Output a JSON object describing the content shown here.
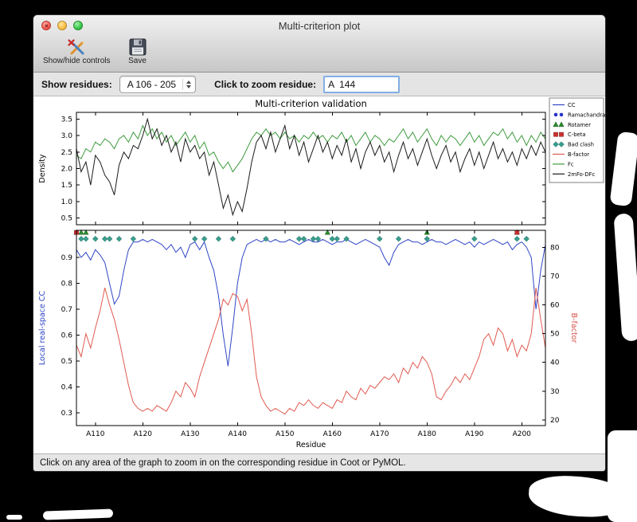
{
  "window": {
    "title": "Multi-criterion plot",
    "toolbar": {
      "show_hide_controls": "Show/hide controls",
      "save": "Save"
    },
    "controls": {
      "show_residues_label": "Show residues:",
      "residue_range_value": "A 106 - 205",
      "zoom_label": "Click to zoom residue:",
      "zoom_value": "A  144"
    },
    "status_text": "Click on any area of the graph to zoom in on the corresponding residue in Coot or PyMOL."
  },
  "chart_data": {
    "type": "line",
    "title": "Multi-criterion validation",
    "xlabel": "Residue",
    "x_start": 106,
    "x_end": 205,
    "x_ticks": [
      {
        "label": "A110",
        "value": 110
      },
      {
        "label": "A120",
        "value": 120
      },
      {
        "label": "A130",
        "value": 130
      },
      {
        "label": "A140",
        "value": 140
      },
      {
        "label": "A150",
        "value": 150
      },
      {
        "label": "A160",
        "value": 160
      },
      {
        "label": "A170",
        "value": 170
      },
      {
        "label": "A180",
        "value": 180
      },
      {
        "label": "A190",
        "value": 190
      },
      {
        "label": "A200",
        "value": 200
      }
    ],
    "top_panel": {
      "ylabel": "Density",
      "ylim": [
        0.3,
        3.7
      ],
      "yticks": [
        0.5,
        1.0,
        1.5,
        2.0,
        2.5,
        3.0,
        3.5
      ],
      "series": [
        {
          "name": "Fc",
          "color": "#3f9b3f",
          "values": [
            2.4,
            2.3,
            2.6,
            2.5,
            2.8,
            2.7,
            2.9,
            2.8,
            2.6,
            2.9,
            3.0,
            2.8,
            3.1,
            2.9,
            3.3,
            3.0,
            3.2,
            2.9,
            3.1,
            2.8,
            3.0,
            2.7,
            2.9,
            3.1,
            2.8,
            3.0,
            2.6,
            2.8,
            2.4,
            2.5,
            2.2,
            2.0,
            2.2,
            1.9,
            2.1,
            2.3,
            2.6,
            2.9,
            3.1,
            3.0,
            3.2,
            3.0,
            3.1,
            2.9,
            3.1,
            2.9,
            3.0,
            2.8,
            3.0,
            2.9,
            3.1,
            2.9,
            3.0,
            2.8,
            3.0,
            2.9,
            3.1,
            2.8,
            3.0,
            2.7,
            2.9,
            3.1,
            2.8,
            3.0,
            2.9,
            2.7,
            2.9,
            2.8,
            3.0,
            3.2,
            2.9,
            3.1,
            2.8,
            3.0,
            3.2,
            2.9,
            2.7,
            3.0,
            2.8,
            3.0,
            2.9,
            2.7,
            2.9,
            3.1,
            2.8,
            3.0,
            2.7,
            2.9,
            3.1,
            3.0,
            3.2,
            2.9,
            3.1,
            2.8,
            3.0,
            2.7,
            3.0,
            2.8,
            3.1,
            2.9
          ]
        },
        {
          "name": "2mFo-DFc",
          "color": "#1a1a1a",
          "values": [
            2.6,
            1.9,
            2.2,
            1.5,
            2.4,
            2.2,
            1.8,
            1.6,
            1.2,
            2.1,
            2.5,
            2.3,
            2.7,
            2.6,
            3.0,
            3.5,
            2.9,
            3.2,
            2.7,
            3.0,
            2.5,
            2.8,
            2.2,
            2.9,
            2.5,
            2.7,
            2.3,
            2.5,
            1.8,
            2.2,
            1.5,
            0.8,
            1.2,
            0.6,
            1.0,
            0.7,
            1.4,
            2.2,
            2.8,
            3.0,
            2.6,
            3.1,
            2.5,
            2.9,
            3.3,
            2.6,
            3.0,
            2.4,
            2.8,
            2.2,
            2.6,
            3.0,
            2.5,
            2.8,
            2.3,
            2.7,
            2.4,
            2.9,
            2.2,
            2.6,
            2.0,
            2.5,
            2.8,
            2.4,
            2.7,
            2.2,
            2.5,
            1.9,
            2.4,
            2.8,
            2.3,
            2.6,
            2.1,
            2.5,
            2.9,
            2.4,
            2.0,
            2.4,
            2.7,
            2.2,
            2.5,
            1.9,
            2.3,
            2.6,
            2.1,
            2.5,
            2.0,
            2.4,
            2.8,
            2.3,
            2.6,
            2.2,
            2.5,
            2.1,
            2.6,
            2.3,
            2.7,
            2.4,
            2.8,
            2.5
          ]
        }
      ]
    },
    "bottom_panel": {
      "ylabel_left": "Local real-space CC",
      "left_color": "#2f45c5",
      "ylim_left": [
        0.25,
        1.005
      ],
      "yticks_left": [
        0.3,
        0.4,
        0.5,
        0.6,
        0.7,
        0.8,
        0.9
      ],
      "ylabel_right": "B-factor",
      "right_color": "#d9534a",
      "ylim_right": [
        18,
        86
      ],
      "yticks_right": [
        20,
        30,
        40,
        50,
        60,
        70,
        80
      ],
      "series": [
        {
          "name": "CC",
          "axis": "left",
          "color": "#2f45c5",
          "values": [
            0.93,
            0.9,
            0.92,
            0.89,
            0.93,
            0.91,
            0.88,
            0.8,
            0.72,
            0.75,
            0.85,
            0.93,
            0.96,
            0.96,
            0.97,
            0.96,
            0.97,
            0.96,
            0.95,
            0.93,
            0.95,
            0.92,
            0.94,
            0.9,
            0.95,
            0.96,
            0.93,
            0.96,
            0.9,
            0.85,
            0.75,
            0.6,
            0.48,
            0.63,
            0.8,
            0.9,
            0.95,
            0.96,
            0.97,
            0.96,
            0.97,
            0.96,
            0.97,
            0.96,
            0.96,
            0.97,
            0.96,
            0.95,
            0.96,
            0.97,
            0.96,
            0.96,
            0.97,
            0.96,
            0.95,
            0.96,
            0.96,
            0.97,
            0.96,
            0.95,
            0.96,
            0.97,
            0.96,
            0.95,
            0.94,
            0.9,
            0.87,
            0.92,
            0.95,
            0.96,
            0.97,
            0.96,
            0.96,
            0.95,
            0.96,
            0.97,
            0.96,
            0.96,
            0.95,
            0.96,
            0.97,
            0.96,
            0.95,
            0.96,
            0.94,
            0.96,
            0.95,
            0.96,
            0.97,
            0.96,
            0.95,
            0.96,
            0.93,
            0.95,
            0.96,
            0.94,
            0.9,
            0.7,
            0.85,
            0.95
          ]
        },
        {
          "name": "B-factor",
          "axis": "right",
          "color": "#e05a50",
          "values": [
            46,
            42,
            50,
            45,
            52,
            58,
            66,
            60,
            55,
            48,
            40,
            32,
            26,
            24,
            23,
            24,
            23,
            25,
            24,
            23,
            26,
            30,
            28,
            33,
            31,
            28,
            35,
            40,
            45,
            50,
            55,
            62,
            60,
            64,
            63,
            58,
            62,
            50,
            35,
            28,
            25,
            23,
            24,
            23,
            22,
            24,
            23,
            26,
            25,
            27,
            25,
            24,
            26,
            25,
            24,
            27,
            26,
            30,
            28,
            27,
            31,
            29,
            32,
            31,
            33,
            35,
            34,
            36,
            33,
            38,
            36,
            40,
            38,
            42,
            40,
            36,
            28,
            27,
            30,
            32,
            35,
            33,
            36,
            34,
            38,
            42,
            48,
            50,
            46,
            52,
            50,
            44,
            48,
            42,
            46,
            44,
            50,
            66,
            55,
            45
          ]
        }
      ],
      "markers": [
        {
          "name": "Rotamer",
          "shape": "triangle",
          "color": "#2e8b2e",
          "row": 0.997,
          "residues": [
            106,
            107,
            108,
            159,
            180,
            199
          ]
        },
        {
          "name": "C-beta",
          "shape": "square",
          "color": "#cc2f2f",
          "row": 0.997,
          "residues": [
            106,
            199
          ]
        },
        {
          "name": "Bad clash",
          "shape": "diamond",
          "color": "#3a9e8e",
          "row": 0.972,
          "residues": [
            107,
            108,
            110,
            112,
            113,
            115,
            118,
            131,
            133,
            136,
            139,
            146,
            153,
            154,
            156,
            157,
            160,
            161,
            163,
            170,
            174,
            180,
            190,
            199,
            201
          ]
        }
      ]
    },
    "legend": [
      {
        "label": "CC",
        "type": "line",
        "color": "#2f45c5"
      },
      {
        "label": "Ramachandran",
        "type": "dots",
        "color": "#2633cc"
      },
      {
        "label": "Rotamer",
        "type": "triangles",
        "color": "#2e8b2e"
      },
      {
        "label": "C-beta",
        "type": "squares",
        "color": "#cc2f2f"
      },
      {
        "label": "Bad clash",
        "type": "diamonds",
        "color": "#3a9e8e"
      },
      {
        "label": "B-factor",
        "type": "line",
        "color": "#e05a50"
      },
      {
        "label": "Fc",
        "type": "line",
        "color": "#3f9b3f"
      },
      {
        "label": "2mFo-DFc",
        "type": "line",
        "color": "#1a1a1a"
      }
    ]
  }
}
